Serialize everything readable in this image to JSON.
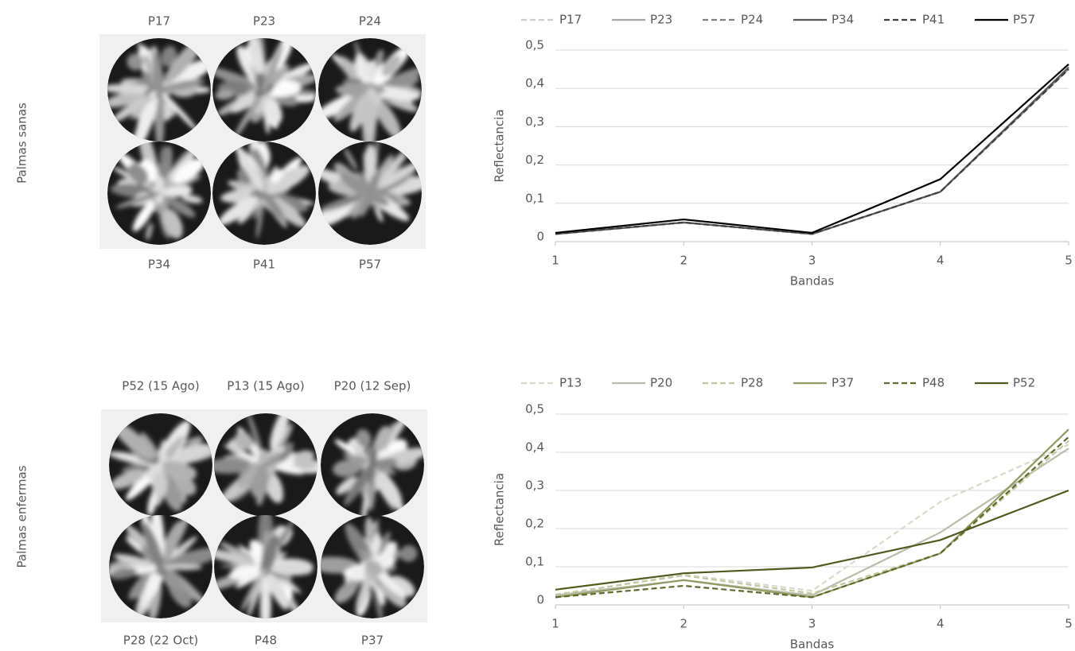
{
  "image_panels": [
    {
      "row_label": "Palmas sanas",
      "top_labels": [
        "P17",
        "P23",
        "P24"
      ],
      "bottom_labels": [
        "P34",
        "P41",
        "P57"
      ]
    },
    {
      "row_label": "Palmas enfermas",
      "top_labels": [
        "P52 (15 Ago)",
        "P13 (15 Ago)",
        "P20 (12 Sep)"
      ],
      "bottom_labels": [
        "P28 (22 Oct)",
        "P48",
        "P37"
      ]
    }
  ],
  "chart_data": [
    {
      "type": "line",
      "x_label": "Bandas",
      "y_label": "Reflectancia",
      "x": [
        1,
        2,
        3,
        4,
        5
      ],
      "xlim": [
        1,
        5
      ],
      "xticks": [
        1,
        2,
        3,
        4,
        5
      ],
      "ylim": [
        0,
        0.5
      ],
      "yticks": [
        0,
        {
          "value": 0.1,
          "label": "0,1"
        },
        {
          "value": 0.2,
          "label": "0,2"
        },
        {
          "value": 0.3,
          "label": "0,3"
        },
        {
          "value": 0.4,
          "label": "0,4"
        },
        {
          "value": 0.5,
          "label": "0,5"
        }
      ],
      "grid": true,
      "legend": "top",
      "series": [
        {
          "name": "P17",
          "color": "#cccccc",
          "dash": true,
          "values": [
            0.02,
            0.05,
            0.02,
            0.13,
            0.45
          ]
        },
        {
          "name": "P23",
          "color": "#a6a6a6",
          "dash": false,
          "values": [
            0.02,
            0.05,
            0.02,
            0.13,
            0.45
          ]
        },
        {
          "name": "P24",
          "color": "#7f7f7f",
          "dash": true,
          "values": [
            0.02,
            0.05,
            0.02,
            0.13,
            0.45
          ]
        },
        {
          "name": "P34",
          "color": "#595959",
          "dash": false,
          "values": [
            0.02,
            0.05,
            0.02,
            0.13,
            0.455
          ]
        },
        {
          "name": "P41",
          "color": "#404040",
          "dash": true,
          "values": [
            0.02,
            0.05,
            0.02,
            0.13,
            0.45
          ]
        },
        {
          "name": "P57",
          "color": "#000000",
          "dash": false,
          "values": [
            0.023,
            0.058,
            0.023,
            0.163,
            0.463
          ]
        }
      ]
    },
    {
      "type": "line",
      "x_label": "Bandas",
      "y_label": "Reflectancia",
      "x": [
        1,
        2,
        3,
        4,
        5
      ],
      "xlim": [
        1,
        5
      ],
      "xticks": [
        1,
        2,
        3,
        4,
        5
      ],
      "ylim": [
        0,
        0.5
      ],
      "yticks": [
        0,
        {
          "value": 0.1,
          "label": "0,1"
        },
        {
          "value": 0.2,
          "label": "0,2"
        },
        {
          "value": 0.3,
          "label": "0,3"
        },
        {
          "value": 0.4,
          "label": "0,4"
        },
        {
          "value": 0.5,
          "label": "0,5"
        }
      ],
      "grid": true,
      "legend": "top",
      "series": [
        {
          "name": "P13",
          "color": "#d9d9cc",
          "dash": true,
          "values": [
            0.025,
            0.08,
            0.037,
            0.27,
            0.42
          ]
        },
        {
          "name": "P20",
          "color": "#bcbcaa",
          "dash": false,
          "values": [
            0.025,
            0.065,
            0.025,
            0.19,
            0.41
          ]
        },
        {
          "name": "P28",
          "color": "#c2c8a0",
          "dash": true,
          "values": [
            0.027,
            0.077,
            0.03,
            0.135,
            0.43
          ]
        },
        {
          "name": "P37",
          "color": "#8e9b62",
          "dash": false,
          "values": [
            0.02,
            0.065,
            0.02,
            0.135,
            0.46
          ]
        },
        {
          "name": "P48",
          "color": "#5b6a2c",
          "dash": true,
          "values": [
            0.02,
            0.05,
            0.02,
            0.135,
            0.44
          ]
        },
        {
          "name": "P52",
          "color": "#4f5a1e",
          "dash": false,
          "values": [
            0.04,
            0.083,
            0.098,
            0.17,
            0.3
          ]
        }
      ]
    }
  ]
}
